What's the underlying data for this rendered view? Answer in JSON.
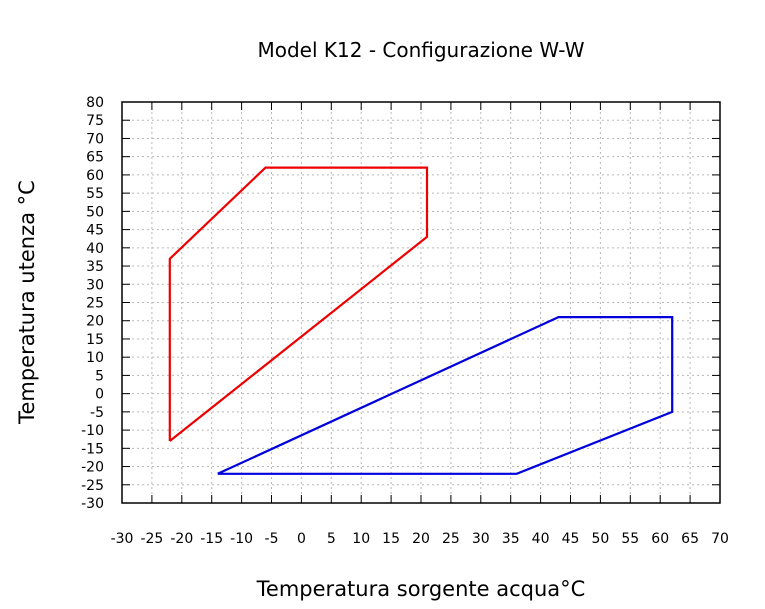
{
  "chart_data": {
    "type": "line",
    "title": "Model K12 - Configurazione W-W",
    "xlabel": "Temperatura sorgente acqua°C",
    "ylabel": "Temperatura utenza °C",
    "xlim": [
      -30,
      70
    ],
    "ylim": [
      -30,
      80
    ],
    "xticks": [
      -30,
      -25,
      -20,
      -15,
      -10,
      -5,
      0,
      5,
      10,
      15,
      20,
      25,
      30,
      35,
      40,
      45,
      50,
      55,
      60,
      65,
      70
    ],
    "yticks": [
      -30,
      -25,
      -20,
      -15,
      -10,
      -5,
      0,
      5,
      10,
      15,
      20,
      25,
      30,
      35,
      40,
      45,
      50,
      55,
      60,
      65,
      70,
      75,
      80
    ],
    "grid": true,
    "series": [
      {
        "color": "#ee0000",
        "x": [
          -22,
          -22,
          -6,
          21,
          21,
          -22
        ],
        "y": [
          -13,
          37,
          62,
          62,
          43,
          -13
        ]
      },
      {
        "color": "#0000dd",
        "x": [
          -14,
          36,
          62,
          62,
          43,
          -14
        ],
        "y": [
          -22,
          -22,
          -5,
          21,
          21,
          -22
        ]
      }
    ]
  }
}
